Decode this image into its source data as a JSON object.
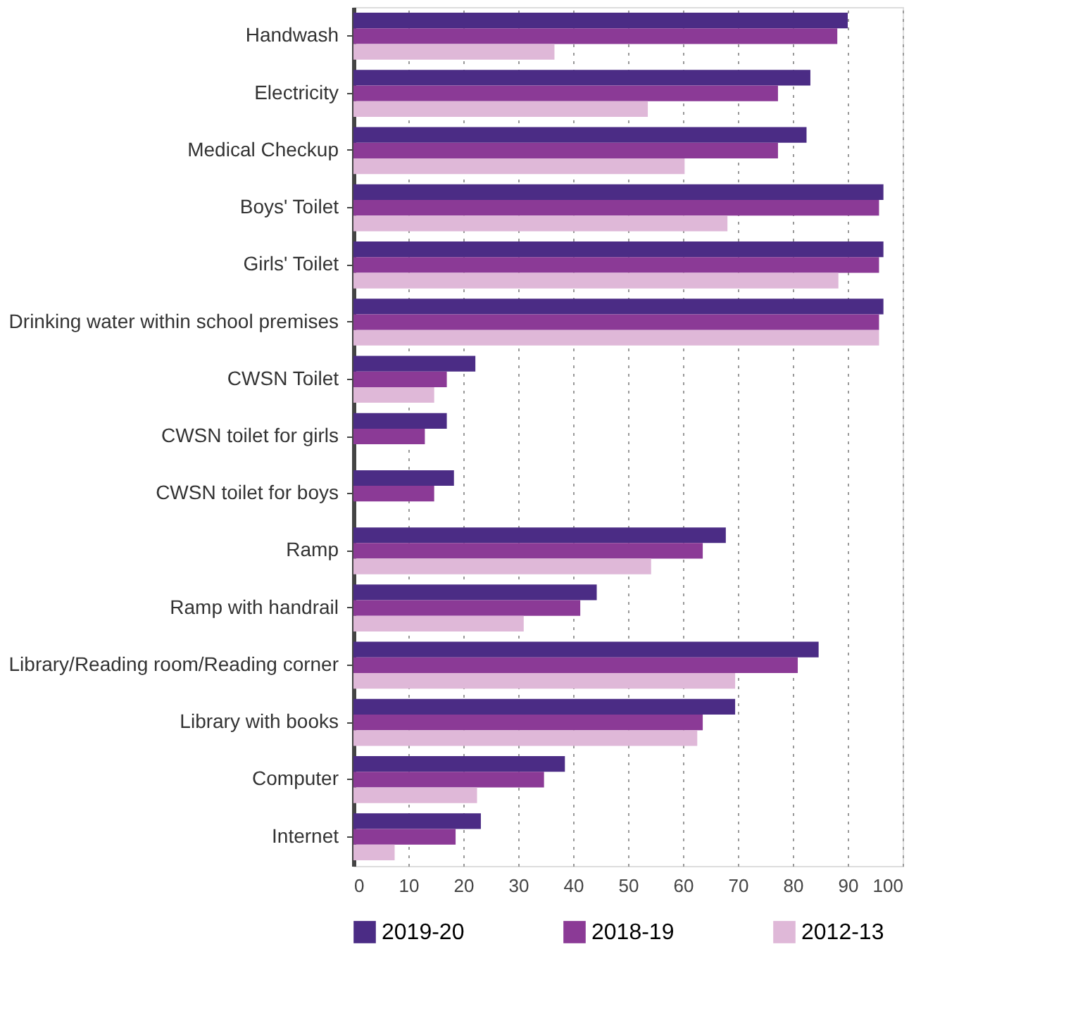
{
  "chart_data": {
    "type": "bar",
    "orientation": "horizontal",
    "categories": [
      "Handwash",
      "Electricity",
      "Medical Checkup",
      "Boys' Toilet",
      "Girls' Toilet",
      "Drinking water within school premises",
      "CWSN Toilet",
      "CWSN toilet for girls",
      "CWSN toilet for boys",
      "Ramp",
      "Ramp with handrail",
      "Library/Reading room/Reading corner",
      "Library with books",
      "Computer",
      "Internet"
    ],
    "series": [
      {
        "name": "2019-20",
        "color": "#4b2c85",
        "values": [
          90.0,
          83.2,
          82.5,
          96.5,
          96.5,
          96.5,
          22.2,
          17.0,
          18.3,
          67.8,
          44.3,
          84.7,
          69.5,
          38.5,
          23.2
        ]
      },
      {
        "name": "2018-19",
        "color": "#8b3a96",
        "values": [
          88.1,
          77.3,
          77.3,
          95.7,
          95.7,
          95.7,
          17.0,
          13.0,
          14.7,
          63.6,
          41.3,
          80.9,
          63.6,
          34.7,
          18.6
        ]
      },
      {
        "name": "2012-13",
        "color": "#dfb8d8",
        "values": [
          36.6,
          53.6,
          60.3,
          68.1,
          88.3,
          95.7,
          14.7,
          null,
          null,
          54.2,
          31.0,
          69.5,
          62.6,
          22.5,
          7.5
        ]
      }
    ],
    "xlim": [
      0,
      100
    ],
    "xticks": [
      0,
      10,
      20,
      30,
      40,
      50,
      60,
      70,
      80,
      90,
      100
    ],
    "grid": "x",
    "legend": "bottom"
  }
}
